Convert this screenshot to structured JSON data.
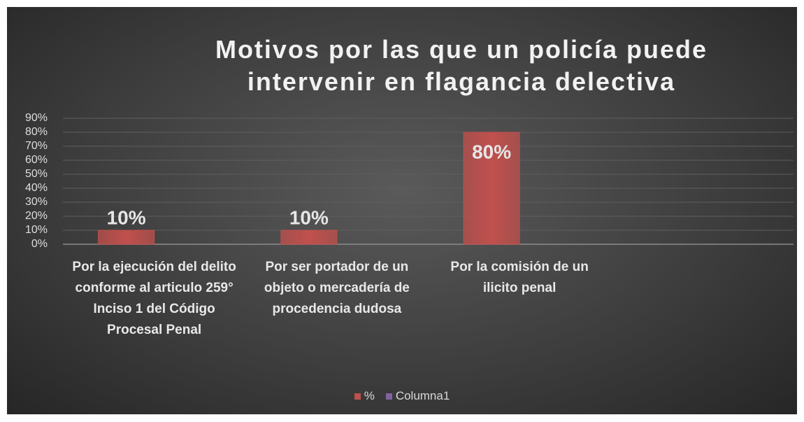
{
  "chart_data": {
    "type": "bar",
    "title": "Motivos por las que un policía puede intervenir en flagancia delectiva",
    "categories": [
      "Por la ejecución del delito conforme al articulo 259° Inciso 1 del Código Procesal Penal",
      "Por ser portador de un objeto o mercadería de procedencia dudosa",
      "Por la comisión de un ilicito penal",
      null
    ],
    "series": [
      {
        "name": "%",
        "color": "#c0504d",
        "values": [
          10,
          10,
          80,
          null
        ],
        "value_labels": [
          "10%",
          "10%",
          "80%",
          null
        ]
      },
      {
        "name": "Columna1",
        "color": "#8064a2",
        "values": [
          null,
          null,
          null,
          null
        ]
      }
    ],
    "ylim": [
      0,
      90
    ],
    "yticks": [
      {
        "value": 0,
        "label": "0%"
      },
      {
        "value": 10,
        "label": "10%"
      },
      {
        "value": 20,
        "label": "20%"
      },
      {
        "value": 30,
        "label": "30%"
      },
      {
        "value": 40,
        "label": "40%"
      },
      {
        "value": 50,
        "label": "50%"
      },
      {
        "value": 60,
        "label": "60%"
      },
      {
        "value": 70,
        "label": "70%"
      },
      {
        "value": 80,
        "label": "80%"
      },
      {
        "value": 90,
        "label": "90%"
      }
    ],
    "grid": true,
    "legend": "bottom"
  }
}
